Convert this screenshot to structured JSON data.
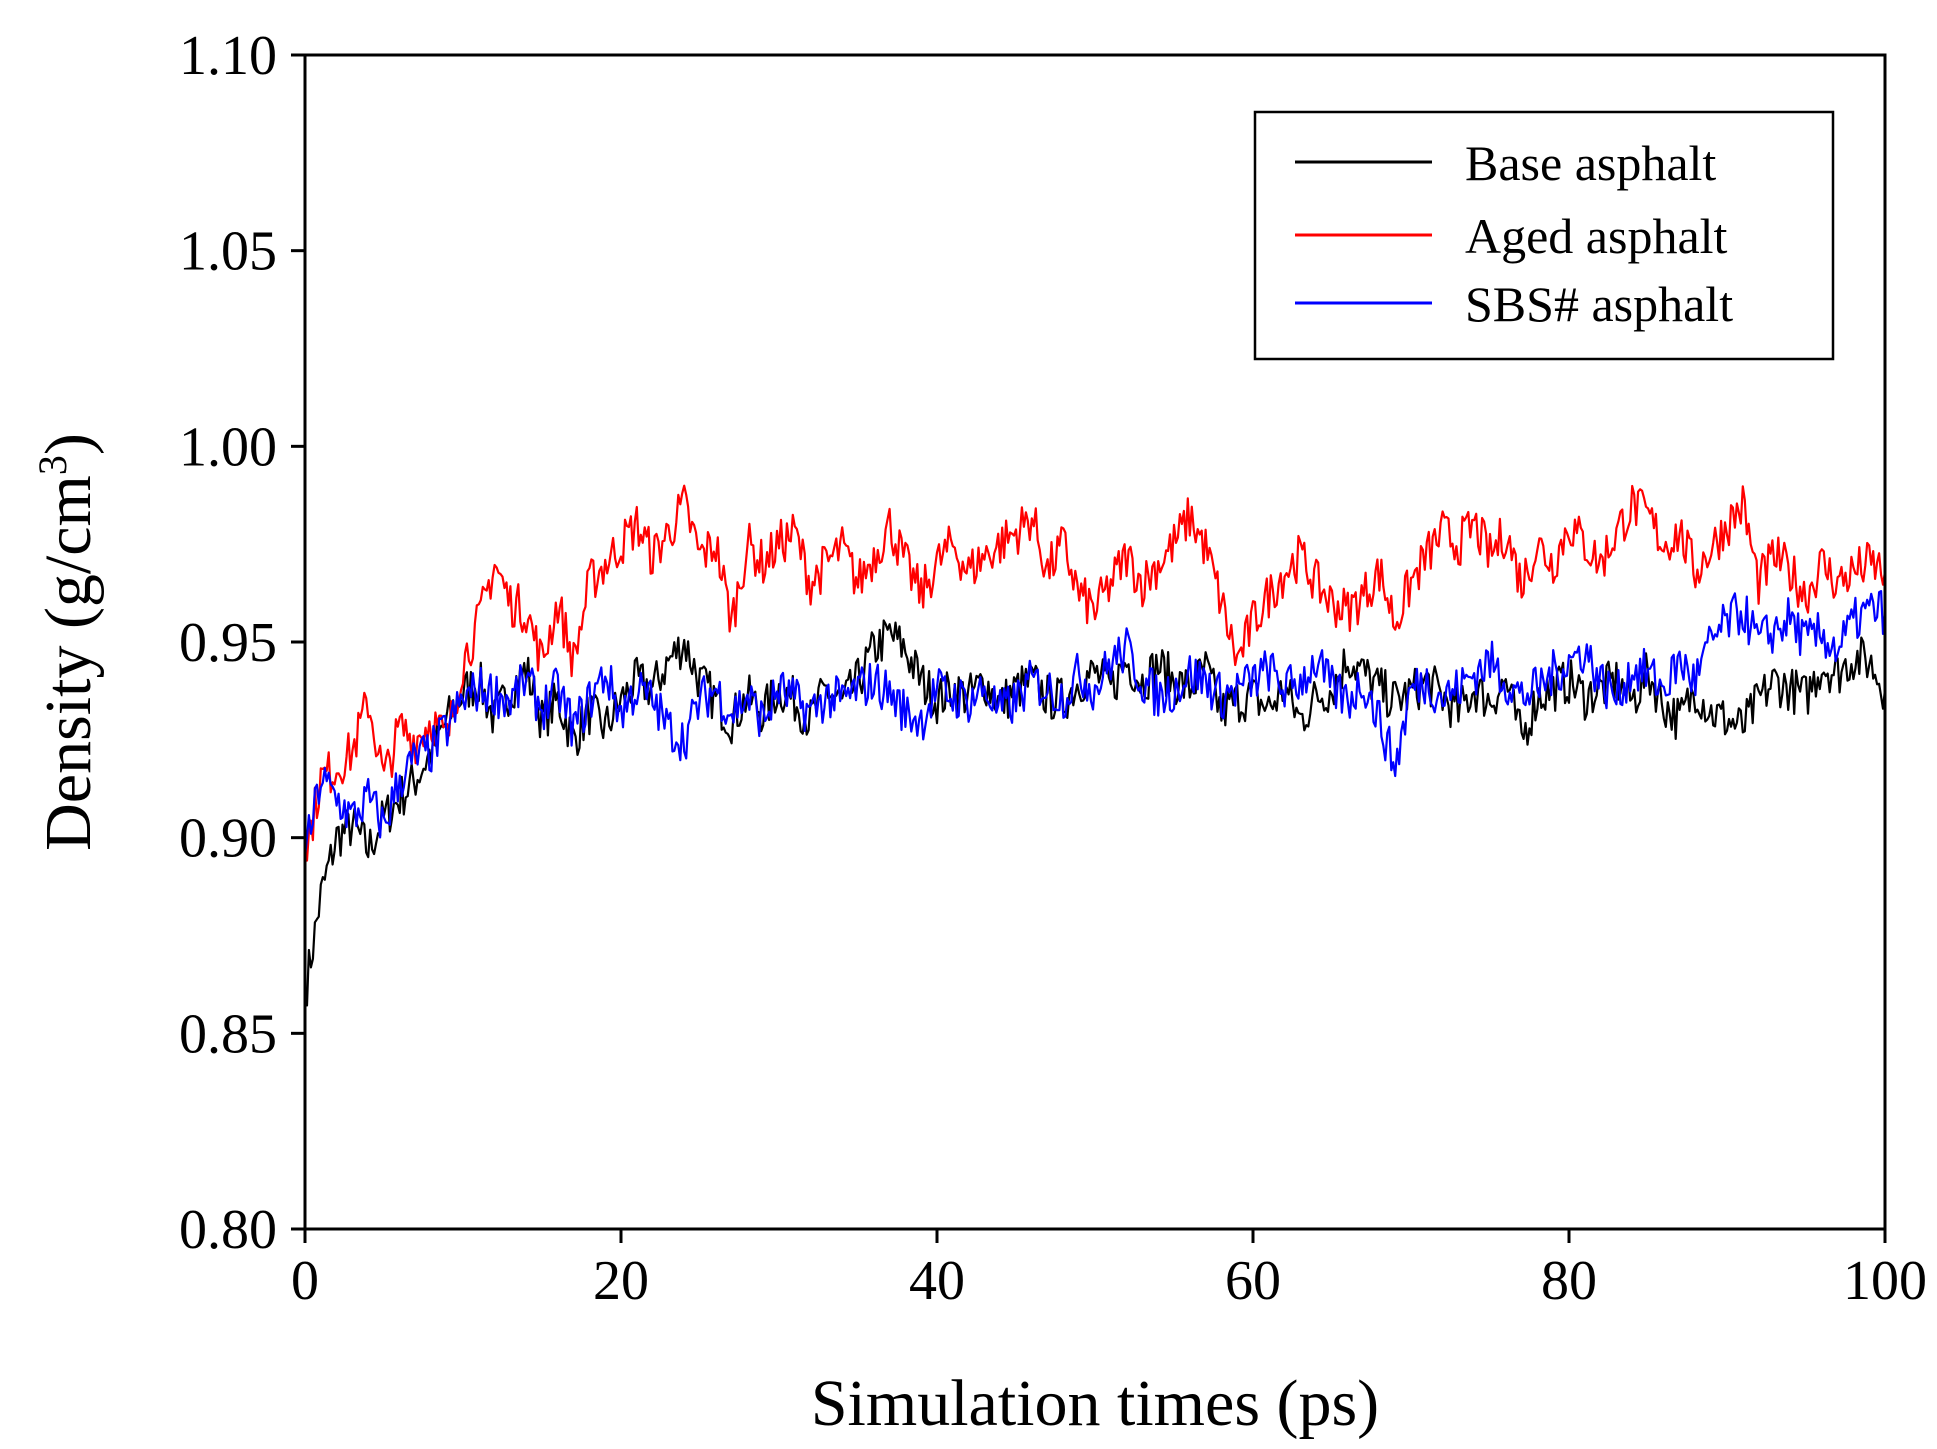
{
  "chart_data": {
    "type": "line",
    "title": "",
    "xlabel": "Simulation times (ps)",
    "ylabel_main": "Density (g/cm",
    "ylabel_sup": "3",
    "ylabel_close": ")",
    "xlim": [
      0,
      100
    ],
    "ylim": [
      0.8,
      1.1
    ],
    "xticks": [
      0,
      20,
      40,
      60,
      80,
      100
    ],
    "xtick_labels": [
      "0",
      "20",
      "40",
      "60",
      "80",
      "100"
    ],
    "yticks": [
      0.8,
      0.85,
      0.9,
      0.95,
      1.0,
      1.05,
      1.1
    ],
    "ytick_labels": [
      "0.80",
      "0.85",
      "0.90",
      "0.95",
      "1.00",
      "1.05",
      "1.10"
    ],
    "grid": false,
    "legend_position": "top-right",
    "x": [
      0,
      1,
      2,
      3,
      4,
      5,
      6,
      7,
      8,
      9,
      10,
      11,
      12,
      13,
      14,
      15,
      16,
      17,
      18,
      19,
      20,
      21,
      22,
      23,
      24,
      25,
      26,
      27,
      28,
      29,
      30,
      31,
      32,
      33,
      34,
      35,
      36,
      37,
      38,
      39,
      40,
      41,
      42,
      43,
      44,
      45,
      46,
      47,
      48,
      49,
      50,
      51,
      52,
      53,
      54,
      55,
      56,
      57,
      58,
      59,
      60,
      61,
      62,
      63,
      64,
      65,
      66,
      67,
      68,
      69,
      70,
      71,
      72,
      73,
      74,
      75,
      76,
      77,
      78,
      79,
      80,
      81,
      82,
      83,
      84,
      85,
      86,
      87,
      88,
      89,
      90,
      91,
      92,
      93,
      94,
      95,
      96,
      97,
      98,
      99,
      100
    ],
    "series": [
      {
        "name": "Base asphalt",
        "color": "#000000",
        "values": [
          0.86,
          0.885,
          0.9,
          0.903,
          0.897,
          0.905,
          0.91,
          0.915,
          0.922,
          0.93,
          0.937,
          0.94,
          0.93,
          0.938,
          0.943,
          0.93,
          0.935,
          0.925,
          0.932,
          0.928,
          0.935,
          0.94,
          0.938,
          0.945,
          0.95,
          0.94,
          0.935,
          0.93,
          0.936,
          0.932,
          0.938,
          0.935,
          0.93,
          0.938,
          0.934,
          0.94,
          0.948,
          0.952,
          0.948,
          0.94,
          0.935,
          0.938,
          0.936,
          0.94,
          0.934,
          0.938,
          0.94,
          0.936,
          0.935,
          0.94,
          0.942,
          0.938,
          0.945,
          0.94,
          0.944,
          0.94,
          0.938,
          0.943,
          0.932,
          0.935,
          0.936,
          0.933,
          0.938,
          0.93,
          0.936,
          0.938,
          0.946,
          0.942,
          0.938,
          0.935,
          0.937,
          0.94,
          0.936,
          0.932,
          0.938,
          0.935,
          0.94,
          0.925,
          0.936,
          0.938,
          0.94,
          0.936,
          0.938,
          0.94,
          0.935,
          0.942,
          0.934,
          0.93,
          0.938,
          0.932,
          0.93,
          0.928,
          0.935,
          0.94,
          0.938,
          0.936,
          0.944,
          0.942,
          0.946,
          0.945,
          0.938
        ]
      },
      {
        "name": "Aged asphalt",
        "color": "#ff0000",
        "values": [
          0.895,
          0.915,
          0.918,
          0.922,
          0.935,
          0.915,
          0.928,
          0.925,
          0.93,
          0.925,
          0.945,
          0.955,
          0.97,
          0.96,
          0.958,
          0.945,
          0.96,
          0.945,
          0.965,
          0.97,
          0.975,
          0.98,
          0.972,
          0.978,
          0.985,
          0.972,
          0.975,
          0.955,
          0.975,
          0.97,
          0.975,
          0.978,
          0.965,
          0.97,
          0.974,
          0.965,
          0.972,
          0.98,
          0.97,
          0.962,
          0.97,
          0.975,
          0.968,
          0.972,
          0.975,
          0.978,
          0.982,
          0.968,
          0.975,
          0.962,
          0.958,
          0.965,
          0.972,
          0.965,
          0.97,
          0.975,
          0.982,
          0.974,
          0.96,
          0.945,
          0.955,
          0.962,
          0.968,
          0.972,
          0.965,
          0.96,
          0.958,
          0.962,
          0.968,
          0.955,
          0.965,
          0.972,
          0.978,
          0.975,
          0.98,
          0.972,
          0.978,
          0.965,
          0.975,
          0.97,
          0.98,
          0.975,
          0.97,
          0.978,
          0.985,
          0.982,
          0.975,
          0.978,
          0.968,
          0.974,
          0.98,
          0.985,
          0.965,
          0.972,
          0.968,
          0.962,
          0.97,
          0.965,
          0.968,
          0.97,
          0.968
        ]
      },
      {
        "name": "SBS# asphalt",
        "color": "#0000ff",
        "values": [
          0.895,
          0.915,
          0.91,
          0.905,
          0.91,
          0.903,
          0.915,
          0.92,
          0.922,
          0.928,
          0.935,
          0.938,
          0.937,
          0.935,
          0.94,
          0.933,
          0.938,
          0.928,
          0.935,
          0.942,
          0.932,
          0.938,
          0.935,
          0.928,
          0.925,
          0.935,
          0.938,
          0.932,
          0.936,
          0.93,
          0.938,
          0.935,
          0.932,
          0.936,
          0.935,
          0.938,
          0.94,
          0.937,
          0.932,
          0.93,
          0.938,
          0.936,
          0.935,
          0.938,
          0.932,
          0.935,
          0.94,
          0.938,
          0.936,
          0.942,
          0.938,
          0.945,
          0.948,
          0.94,
          0.936,
          0.938,
          0.942,
          0.94,
          0.936,
          0.938,
          0.94,
          0.943,
          0.938,
          0.94,
          0.945,
          0.938,
          0.935,
          0.94,
          0.93,
          0.918,
          0.938,
          0.94,
          0.936,
          0.938,
          0.942,
          0.945,
          0.94,
          0.936,
          0.938,
          0.942,
          0.945,
          0.948,
          0.94,
          0.936,
          0.943,
          0.942,
          0.938,
          0.945,
          0.94,
          0.95,
          0.955,
          0.958,
          0.95,
          0.953,
          0.956,
          0.95,
          0.952,
          0.948,
          0.955,
          0.958,
          0.958
        ]
      }
    ]
  }
}
